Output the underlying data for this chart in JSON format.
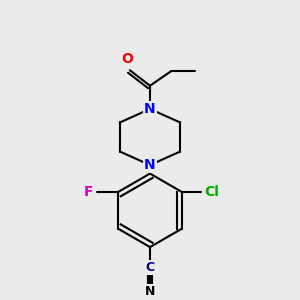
{
  "bg_color": "#ebebeb",
  "bond_color": "#000000",
  "bond_width": 1.5,
  "atom_colors": {
    "O": "#ff0000",
    "N": "#0000ff",
    "F": "#cc00cc",
    "Cl": "#00aa00",
    "C_nitrile": "#000080",
    "N_nitrile": "#000000"
  },
  "font_size_atoms": 10,
  "font_size_nitrile": 9
}
